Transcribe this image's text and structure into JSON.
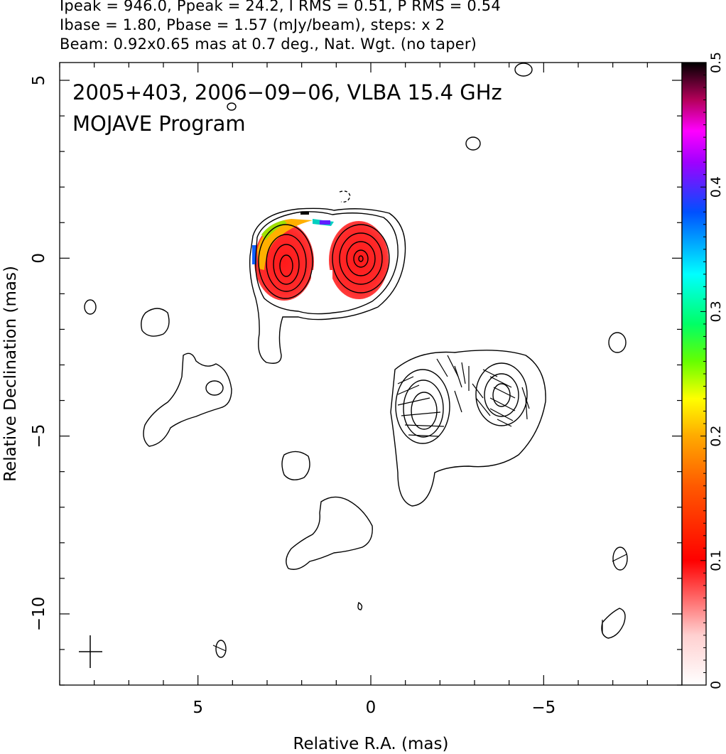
{
  "header": {
    "line1": "Ipeak = 946.0, Ppeak = 24.2, I RMS = 0.51, P RMS = 0.54",
    "line2": "Ibase = 1.80, Pbase = 1.57 (mJy/beam), steps: x 2",
    "line3": "Beam: 0.92x0.65 mas at 0.7 deg., Nat. Wgt. (no taper)"
  },
  "chart_data": {
    "type": "heatmap",
    "title": "2005+403, 2006−09−06, VLBA 15.4 GHz",
    "subtitle": "MOJAVE Program",
    "xlabel": "Relative R.A. (mas)",
    "ylabel": "Relative Declination (mas)",
    "xlim": [
      9.0,
      -9.0
    ],
    "ylim": [
      -12.0,
      5.5
    ],
    "x_ticks": [
      5,
      0,
      -5
    ],
    "x_tick_labels": [
      "5",
      "0",
      "−5"
    ],
    "y_ticks": [
      5,
      0,
      -5,
      -10
    ],
    "y_tick_labels": [
      "5",
      "0",
      "−5",
      "−10"
    ],
    "colorbar": {
      "range": [
        0,
        0.5
      ],
      "ticks": [
        0,
        0.1,
        0.2,
        0.3,
        0.4,
        0.5
      ],
      "tick_labels": [
        "0",
        "0.1",
        "0.2",
        "0.3",
        "0.4",
        "0.5"
      ]
    },
    "polarization_blobs": [
      {
        "cx": 2.2,
        "cy": -0.2,
        "rx": 1.2,
        "ry": 1.2,
        "value": 0.1
      },
      {
        "cx": 0.0,
        "cy": -0.1,
        "rx": 1.0,
        "ry": 1.1,
        "value": 0.08
      }
    ],
    "components": [
      {
        "cx": 2.2,
        "cy": -0.2,
        "rx": 0.45,
        "ry": 0.65
      },
      {
        "cx": 0.05,
        "cy": -0.05,
        "rx": 0.4,
        "ry": 0.45
      },
      {
        "cx": -1.7,
        "cy": -4.3,
        "rx": 0.55,
        "ry": 0.8
      },
      {
        "cx": -3.9,
        "cy": -4.0,
        "rx": 0.45,
        "ry": 0.55
      }
    ],
    "beam": {
      "major_mas": 0.92,
      "minor_mas": 0.65,
      "pa_deg": 0.7
    }
  }
}
